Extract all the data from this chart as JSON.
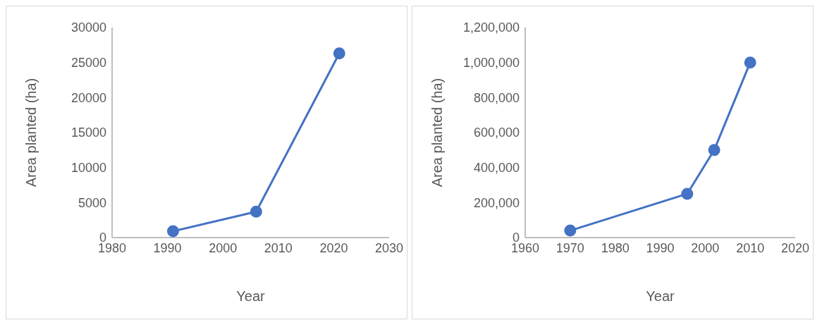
{
  "chart_data": [
    {
      "type": "line",
      "xlabel": "Year",
      "ylabel": "Area planted (ha)",
      "x": [
        1991,
        2006,
        2021
      ],
      "values": [
        900,
        3700,
        26300
      ],
      "color": "#4472c4",
      "xlim": [
        1980,
        2030
      ],
      "xticks": [
        1980,
        1990,
        2000,
        2010,
        2020,
        2030
      ],
      "ylim": [
        0,
        30000
      ],
      "yticks": [
        0,
        5000,
        10000,
        15000,
        20000,
        25000,
        30000
      ],
      "grid": false,
      "marker": "circle"
    },
    {
      "type": "line",
      "xlabel": "Year",
      "ylabel": "Area planted (ha)",
      "x": [
        1970,
        1996,
        2002,
        2010
      ],
      "values": [
        40000,
        250000,
        500000,
        1000000
      ],
      "color": "#4472c4",
      "xlim": [
        1960,
        2020
      ],
      "xticks": [
        1960,
        1970,
        1980,
        1990,
        2000,
        2010,
        2020
      ],
      "ylim": [
        0,
        1200000
      ],
      "yticks": [
        0,
        {
          "value": 200000,
          "label": "200,000"
        },
        {
          "value": 400000,
          "label": "400,000"
        },
        {
          "value": 600000,
          "label": "600,000"
        },
        {
          "value": 800000,
          "label": "800,000"
        },
        {
          "value": 1000000,
          "label": "1,000,000"
        },
        {
          "value": 1200000,
          "label": "1,200,000"
        }
      ],
      "grid": false,
      "marker": "circle"
    }
  ]
}
